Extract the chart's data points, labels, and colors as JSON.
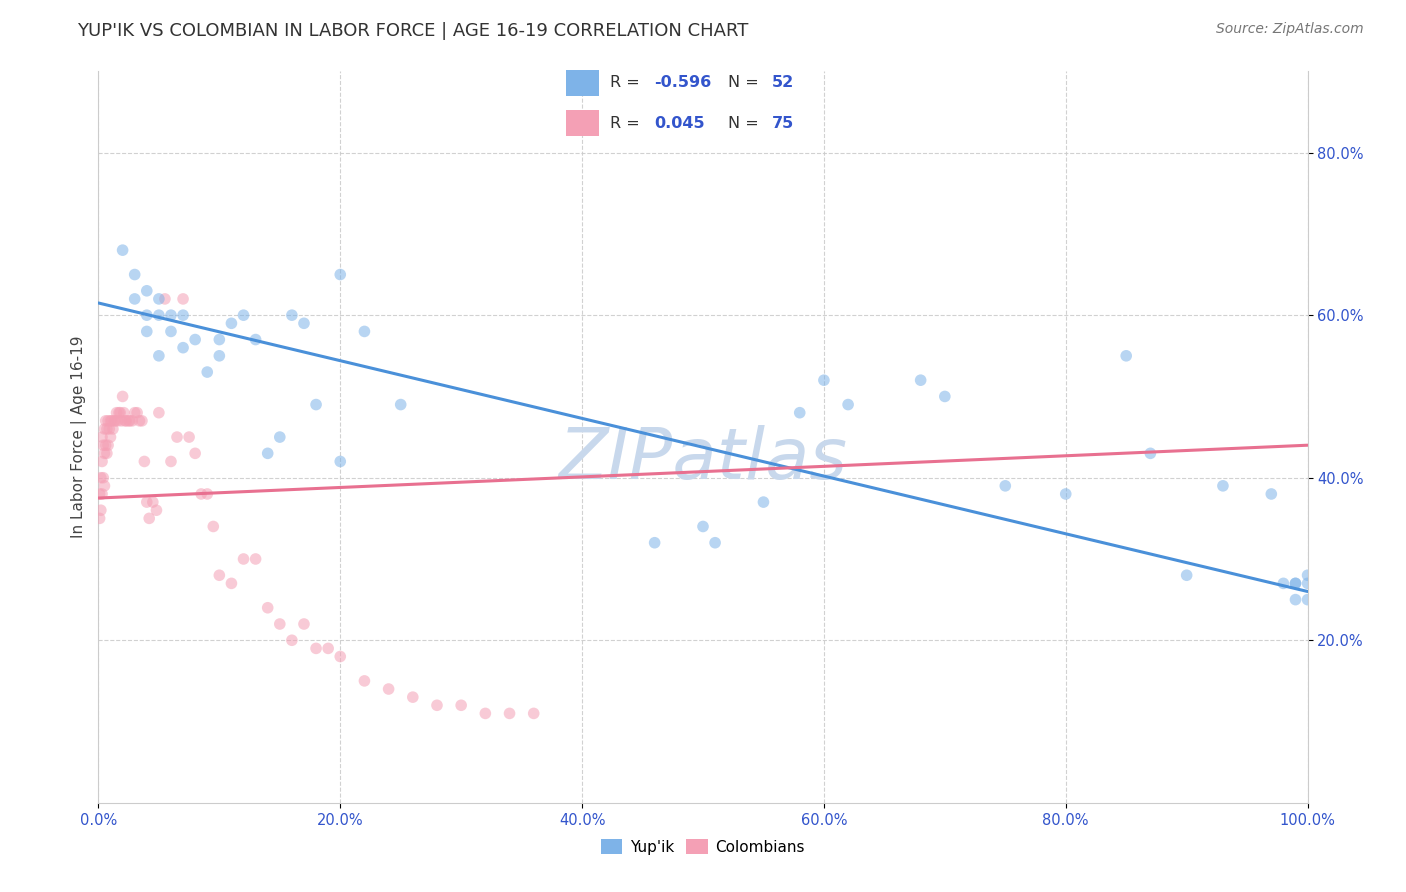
{
  "title": "YUP'IK VS COLOMBIAN IN LABOR FORCE | AGE 16-19 CORRELATION CHART",
  "source": "Source: ZipAtlas.com",
  "ylabel": "In Labor Force | Age 16-19",
  "watermark": "ZIPatlas",
  "xlim": [
    0.0,
    1.0
  ],
  "ylim": [
    0.0,
    0.9
  ],
  "xticks": [
    0.0,
    0.2,
    0.4,
    0.6,
    0.8,
    1.0
  ],
  "yticks": [
    0.2,
    0.4,
    0.6,
    0.8
  ],
  "xtick_labels": [
    "0.0%",
    "20.0%",
    "40.0%",
    "60.0%",
    "80.0%",
    "100.0%"
  ],
  "ytick_labels": [
    "20.0%",
    "40.0%",
    "60.0%",
    "80.0%"
  ],
  "yup_color": "#7EB3E8",
  "col_color": "#F4A0B5",
  "legend_color": "#3355CC",
  "yup_R": "-0.596",
  "yup_N": "52",
  "col_R": "0.045",
  "col_N": "75",
  "yup_scatter_x": [
    0.02,
    0.03,
    0.03,
    0.04,
    0.04,
    0.04,
    0.05,
    0.05,
    0.05,
    0.06,
    0.06,
    0.07,
    0.07,
    0.08,
    0.09,
    0.1,
    0.1,
    0.11,
    0.12,
    0.13,
    0.14,
    0.15,
    0.16,
    0.17,
    0.18,
    0.2,
    0.2,
    0.22,
    0.25,
    0.46,
    0.5,
    0.51,
    0.55,
    0.58,
    0.6,
    0.62,
    0.68,
    0.7,
    0.75,
    0.8,
    0.85,
    0.87,
    0.9,
    0.93,
    0.97,
    0.98,
    0.99,
    0.99,
    0.99,
    1.0,
    1.0,
    1.0
  ],
  "yup_scatter_y": [
    0.68,
    0.65,
    0.62,
    0.63,
    0.6,
    0.58,
    0.62,
    0.6,
    0.55,
    0.6,
    0.58,
    0.6,
    0.56,
    0.57,
    0.53,
    0.57,
    0.55,
    0.59,
    0.6,
    0.57,
    0.43,
    0.45,
    0.6,
    0.59,
    0.49,
    0.65,
    0.42,
    0.58,
    0.49,
    0.32,
    0.34,
    0.32,
    0.37,
    0.48,
    0.52,
    0.49,
    0.52,
    0.5,
    0.39,
    0.38,
    0.55,
    0.43,
    0.28,
    0.39,
    0.38,
    0.27,
    0.27,
    0.25,
    0.27,
    0.28,
    0.25,
    0.27
  ],
  "col_scatter_x": [
    0.001,
    0.001,
    0.002,
    0.002,
    0.003,
    0.003,
    0.003,
    0.004,
    0.004,
    0.005,
    0.005,
    0.005,
    0.006,
    0.006,
    0.007,
    0.007,
    0.008,
    0.008,
    0.009,
    0.01,
    0.01,
    0.011,
    0.012,
    0.013,
    0.014,
    0.015,
    0.016,
    0.017,
    0.018,
    0.019,
    0.02,
    0.021,
    0.022,
    0.023,
    0.025,
    0.026,
    0.028,
    0.03,
    0.032,
    0.034,
    0.036,
    0.038,
    0.04,
    0.042,
    0.045,
    0.048,
    0.05,
    0.055,
    0.06,
    0.065,
    0.07,
    0.075,
    0.08,
    0.085,
    0.09,
    0.095,
    0.1,
    0.11,
    0.12,
    0.13,
    0.14,
    0.15,
    0.16,
    0.17,
    0.18,
    0.19,
    0.2,
    0.22,
    0.24,
    0.26,
    0.28,
    0.3,
    0.32,
    0.34,
    0.36
  ],
  "col_scatter_y": [
    0.38,
    0.35,
    0.4,
    0.36,
    0.45,
    0.42,
    0.38,
    0.44,
    0.4,
    0.46,
    0.43,
    0.39,
    0.47,
    0.44,
    0.46,
    0.43,
    0.47,
    0.44,
    0.46,
    0.47,
    0.45,
    0.47,
    0.46,
    0.47,
    0.47,
    0.48,
    0.47,
    0.48,
    0.48,
    0.47,
    0.5,
    0.48,
    0.47,
    0.47,
    0.47,
    0.47,
    0.47,
    0.48,
    0.48,
    0.47,
    0.47,
    0.42,
    0.37,
    0.35,
    0.37,
    0.36,
    0.48,
    0.62,
    0.42,
    0.45,
    0.62,
    0.45,
    0.43,
    0.38,
    0.38,
    0.34,
    0.28,
    0.27,
    0.3,
    0.3,
    0.24,
    0.22,
    0.2,
    0.22,
    0.19,
    0.19,
    0.18,
    0.15,
    0.14,
    0.13,
    0.12,
    0.12,
    0.11,
    0.11,
    0.11
  ],
  "yup_line_x": [
    0.0,
    1.0
  ],
  "yup_line_y": [
    0.615,
    0.26
  ],
  "col_line_x": [
    0.0,
    1.0
  ],
  "col_line_y": [
    0.375,
    0.44
  ],
  "background_color": "#FFFFFF",
  "grid_color": "#CCCCCC",
  "title_fontsize": 13,
  "axis_label_fontsize": 11,
  "tick_fontsize": 10.5,
  "source_fontsize": 10,
  "watermark_fontsize": 52,
  "watermark_color": "#C8D8EC",
  "marker_size": 70,
  "marker_alpha": 0.55
}
